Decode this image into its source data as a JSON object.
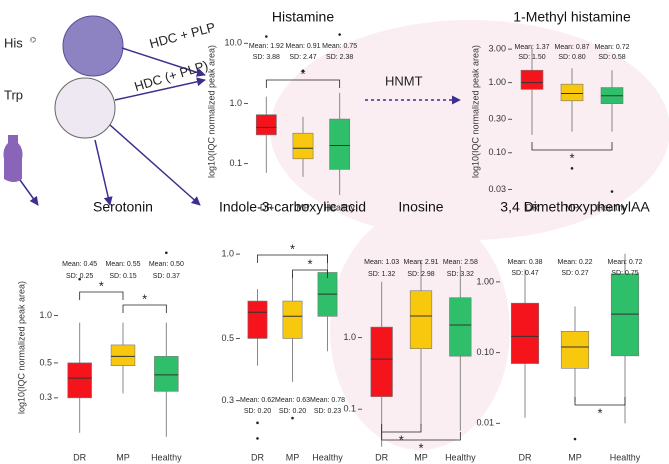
{
  "diagram": {
    "his": "His",
    "trp": "Trp",
    "arrow1": "HDC + PLP",
    "arrow2": "HDC (+ PLP)",
    "arrow3": "HNMT"
  },
  "chart_data": [
    {
      "type": "box",
      "title": "Histamine",
      "ylabel": "log10(IQC normalized peak area)",
      "log_y": true,
      "categories": [
        "DR",
        "MP",
        "Healthy"
      ],
      "colors": [
        "#f5141c",
        "#f8c80f",
        "#2fbf6a"
      ],
      "ylim": [
        0.03,
        18
      ],
      "yticks": [
        {
          "value": 0.1,
          "label": "0.1"
        },
        {
          "value": 1,
          "label": "1.0"
        },
        {
          "value": 10,
          "label": "10.0"
        }
      ],
      "boxes": [
        {
          "q1": 0.3,
          "median": 0.4,
          "q3": 0.65,
          "whislo": 0.07,
          "whishi": 1.3,
          "fliers": [
            13
          ]
        },
        {
          "q1": 0.12,
          "median": 0.18,
          "q3": 0.32,
          "whislo": 0.06,
          "whishi": 0.6,
          "fliers": [
            3.5
          ]
        },
        {
          "q1": 0.08,
          "median": 0.2,
          "q3": 0.55,
          "whislo": 0.03,
          "whishi": 1.5,
          "fliers": [
            14
          ]
        }
      ],
      "stats": [
        [
          "Mean: 1.92",
          "SD: 3.88"
        ],
        [
          "Mean: 0.91",
          "SD: 2.47"
        ],
        [
          "Mean: 0.75",
          "SD: 2.38"
        ]
      ],
      "significance": [
        {
          "groups": [
            "DR",
            "Healthy"
          ],
          "label": "*"
        }
      ]
    },
    {
      "type": "box",
      "title": "1-Methyl histamine",
      "ylabel": "log10(IQC normalized peak area)",
      "log_y": true,
      "categories": [
        "DR",
        "MP",
        "Healthy"
      ],
      "colors": [
        "#f5141c",
        "#f8c80f",
        "#2fbf6a"
      ],
      "ylim": [
        0.025,
        6
      ],
      "yticks": [
        {
          "value": 0.03,
          "label": "0.03"
        },
        {
          "value": 0.1,
          "label": "0.10"
        },
        {
          "value": 0.3,
          "label": "0.30"
        },
        {
          "value": 1,
          "label": "1.00"
        },
        {
          "value": 3,
          "label": "3.00"
        }
      ],
      "boxes": [
        {
          "q1": 0.8,
          "median": 1.0,
          "q3": 1.5,
          "whislo": 0.18,
          "whishi": 3,
          "fliers": []
        },
        {
          "q1": 0.55,
          "median": 0.7,
          "q3": 0.95,
          "whislo": 0.2,
          "whishi": 1.6,
          "fliers": [
            0.06
          ]
        },
        {
          "q1": 0.5,
          "median": 0.65,
          "q3": 0.85,
          "whislo": 0.2,
          "whishi": 1.5,
          "fliers": [
            0.028
          ]
        }
      ],
      "stats": [
        [
          "Mean: 1.37",
          "SD: 1.50"
        ],
        [
          "Mean: 0.87",
          "SD: 0.80"
        ],
        [
          "Mean: 0.72",
          "SD: 0.58"
        ]
      ],
      "significance": [
        {
          "groups": [
            "DR",
            "Healthy"
          ],
          "label": "*"
        }
      ]
    },
    {
      "type": "box",
      "title": "Serotonin",
      "ylabel": "log10(IQC normalized peak area)",
      "log_y": true,
      "categories": [
        "DR",
        "MP",
        "Healthy"
      ],
      "colors": [
        "#f5141c",
        "#f8c80f",
        "#2fbf6a"
      ],
      "ylim": [
        0.14,
        2.8
      ],
      "yticks": [
        0.3,
        0.5,
        {
          "value": 1,
          "label": "1.0"
        }
      ],
      "boxes": [
        {
          "q1": 0.3,
          "median": 0.4,
          "q3": 0.5,
          "whislo": 0.18,
          "whishi": 0.9,
          "fliers": [
            1.7
          ]
        },
        {
          "q1": 0.48,
          "median": 0.55,
          "q3": 0.65,
          "whislo": 0.32,
          "whishi": 0.9,
          "fliers": []
        },
        {
          "q1": 0.33,
          "median": 0.42,
          "q3": 0.55,
          "whislo": 0.17,
          "whishi": 0.9,
          "fliers": [
            2.5
          ]
        }
      ],
      "stats": [
        [
          "Mean: 0.45",
          "SD: 0.25"
        ],
        [
          "Mean: 0.55",
          "SD: 0.15"
        ],
        [
          "Mean: 0.50",
          "SD: 0.37"
        ]
      ],
      "significance": [
        {
          "groups": [
            "DR",
            "MP"
          ],
          "label": "*"
        },
        {
          "groups": [
            "MP",
            "Healthy"
          ],
          "label": "*"
        }
      ]
    },
    {
      "type": "box",
      "title": "Indole-3-carboxylic acid",
      "log_y": true,
      "categories": [
        "DR",
        "MP",
        "Healthy"
      ],
      "colors": [
        "#f5141c",
        "#f8c80f",
        "#2fbf6a"
      ],
      "ylim": [
        0.2,
        1.17
      ],
      "yticks": [
        0.3,
        0.5,
        {
          "value": 1,
          "label": "1.0"
        }
      ],
      "boxes": [
        {
          "q1": 0.5,
          "median": 0.62,
          "q3": 0.68,
          "whislo": 0.4,
          "whishi": 0.75,
          "fliers": [
            0.25,
            0.22
          ]
        },
        {
          "q1": 0.5,
          "median": 0.6,
          "q3": 0.68,
          "whislo": 0.35,
          "whishi": 0.85,
          "fliers": [
            0.26
          ]
        },
        {
          "q1": 0.6,
          "median": 0.72,
          "q3": 0.86,
          "whislo": 0.45,
          "whishi": 1.0,
          "fliers": []
        }
      ],
      "stats": [
        [
          "Mean: 0.62",
          "SD: 0.20"
        ],
        [
          "Mean: 0.63",
          "SD: 0.20"
        ],
        [
          "Mean: 0.78",
          "SD: 0.23"
        ]
      ],
      "significance": [
        {
          "groups": [
            "DR",
            "Healthy"
          ],
          "label": "*"
        },
        {
          "groups": [
            "MP",
            "Healthy"
          ],
          "label": "*"
        }
      ]
    },
    {
      "type": "box",
      "title": "Inosine",
      "log_y": true,
      "categories": [
        "DR",
        "MP",
        "Healthy"
      ],
      "colors": [
        "#f5141c",
        "#f8c80f",
        "#2fbf6a"
      ],
      "ylim": [
        0.027,
        27
      ],
      "yticks": [
        0.1,
        {
          "value": 1,
          "label": "1.0"
        }
      ],
      "boxes": [
        {
          "q1": 0.15,
          "median": 0.5,
          "q3": 1.4,
          "whislo": 0.03,
          "whishi": 6,
          "fliers": []
        },
        {
          "q1": 0.7,
          "median": 2,
          "q3": 4.5,
          "whislo": 0.06,
          "whishi": 12,
          "fliers": []
        },
        {
          "q1": 0.55,
          "median": 1.5,
          "q3": 3.6,
          "whislo": 0.05,
          "whishi": 10,
          "fliers": []
        }
      ],
      "stats": [
        [
          "Mean: 1.03",
          "SD: 1.32"
        ],
        [
          "Mean: 2.91",
          "SD: 2.98"
        ],
        [
          "Mean: 2.58",
          "SD: 3.32"
        ]
      ],
      "significance": [
        {
          "groups": [
            "DR",
            "MP"
          ],
          "label": "*"
        },
        {
          "groups": [
            "DR",
            "Healthy"
          ],
          "label": "*"
        }
      ]
    },
    {
      "type": "box",
      "title": "3,4 DimethoxyphenylAA",
      "log_y": true,
      "categories": [
        "DR",
        "MP",
        "Healthy"
      ],
      "colors": [
        "#f5141c",
        "#f8c80f",
        "#2fbf6a"
      ],
      "ylim": [
        0.0042,
        4.6
      ],
      "yticks": [
        0.01,
        {
          "value": 0.1,
          "label": "0.10"
        },
        {
          "value": 1,
          "label": "1.00"
        }
      ],
      "boxes": [
        {
          "q1": 0.07,
          "median": 0.17,
          "q3": 0.5,
          "whislo": 0.012,
          "whishi": 1.5,
          "fliers": []
        },
        {
          "q1": 0.06,
          "median": 0.12,
          "q3": 0.2,
          "whislo": 0.02,
          "whishi": 0.45,
          "fliers": [
            0.006
          ]
        },
        {
          "q1": 0.09,
          "median": 0.35,
          "q3": 1.3,
          "whislo": 0.01,
          "whishi": 2.5,
          "fliers": []
        }
      ],
      "stats": [
        [
          "Mean: 0.38",
          "SD: 0.47"
        ],
        [
          "Mean: 0.22",
          "SD: 0.27"
        ],
        [
          "Mean: 0.72",
          "SD: 0.75"
        ]
      ],
      "significance": [
        {
          "groups": [
            "MP",
            "Healthy"
          ],
          "label": "*"
        }
      ]
    }
  ]
}
